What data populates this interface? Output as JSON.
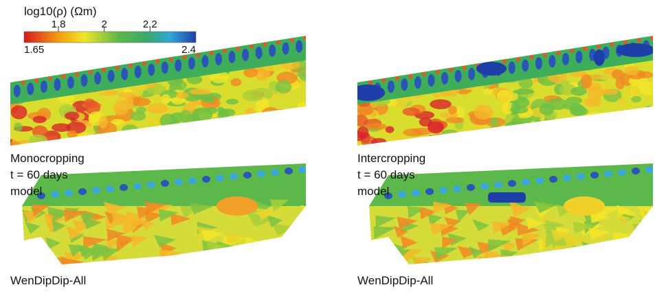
{
  "colorbar": {
    "title": "log10(ρ) (Ωm)",
    "lim": [
      1.65,
      2.4
    ],
    "ticks": [
      1.8,
      2,
      2.2
    ]
  },
  "panels": [
    {
      "label_lines": [
        "Monocropping",
        "t = 60 days",
        "model"
      ],
      "inversion_label": "WenDipDip-All"
    },
    {
      "label_lines": [
        "Intercropping",
        "t = 60 days",
        "model"
      ],
      "inversion_label": "WenDipDip-All"
    }
  ]
}
